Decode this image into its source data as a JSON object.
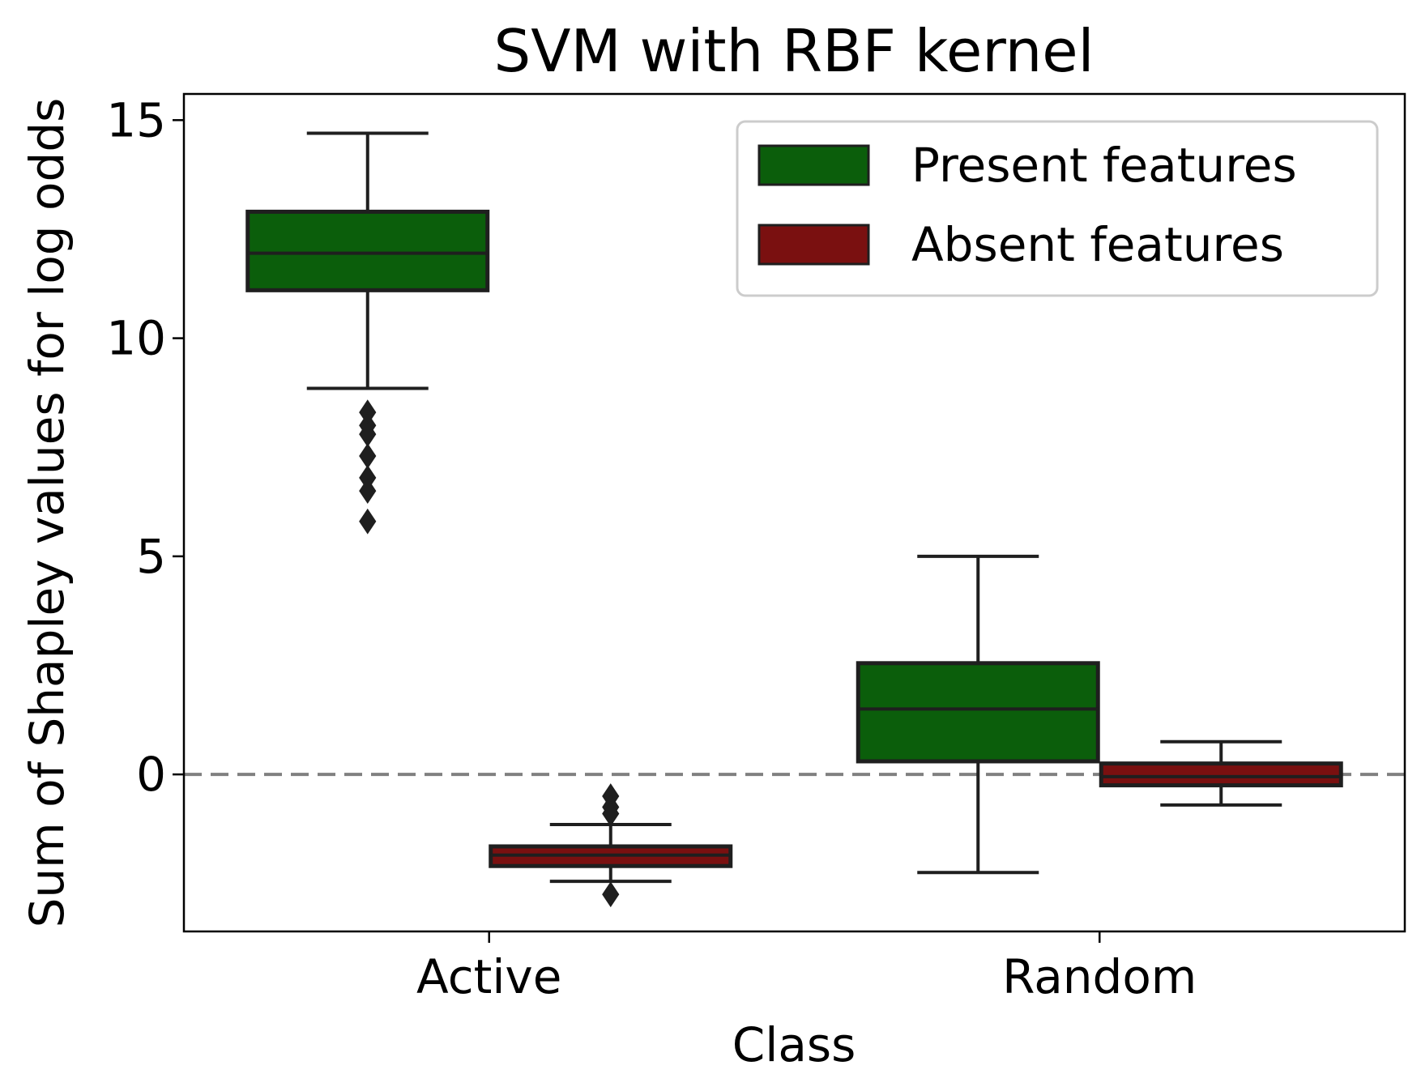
{
  "chart_data": {
    "type": "box",
    "title": "SVM with RBF kernel",
    "xlabel": "Class",
    "ylabel": "Sum of Shapley values for log odds",
    "categories": [
      "Active",
      "Random"
    ],
    "ylim": [
      -3.6,
      15.6
    ],
    "yticks": [
      0,
      5,
      10,
      15
    ],
    "reference_line": {
      "y": 0,
      "style": "dashed",
      "color": "#808080"
    },
    "legend": {
      "placement": "top-right"
    },
    "grid": false,
    "series": [
      {
        "name": "Present features",
        "color": "#0b5e0b",
        "boxes": [
          {
            "category": "Active",
            "whisker_low": 8.85,
            "q1": 11.1,
            "median": 11.95,
            "q3": 12.9,
            "whisker_high": 14.7,
            "outliers": [
              8.3,
              8.0,
              7.8,
              7.3,
              6.8,
              6.5,
              5.8
            ]
          },
          {
            "category": "Random",
            "whisker_low": -2.25,
            "q1": 0.3,
            "median": 1.5,
            "q3": 2.55,
            "whisker_high": 5.0,
            "outliers": []
          }
        ]
      },
      {
        "name": "Absent features",
        "color": "#7a1010",
        "boxes": [
          {
            "category": "Active",
            "whisker_low": -2.45,
            "q1": -2.1,
            "median": -1.85,
            "q3": -1.65,
            "whisker_high": -1.15,
            "outliers": [
              -0.5,
              -0.75,
              -0.9,
              -2.75
            ]
          },
          {
            "category": "Random",
            "whisker_low": -0.7,
            "q1": -0.25,
            "median": -0.05,
            "q3": 0.25,
            "whisker_high": 0.75,
            "outliers": []
          }
        ]
      }
    ]
  }
}
